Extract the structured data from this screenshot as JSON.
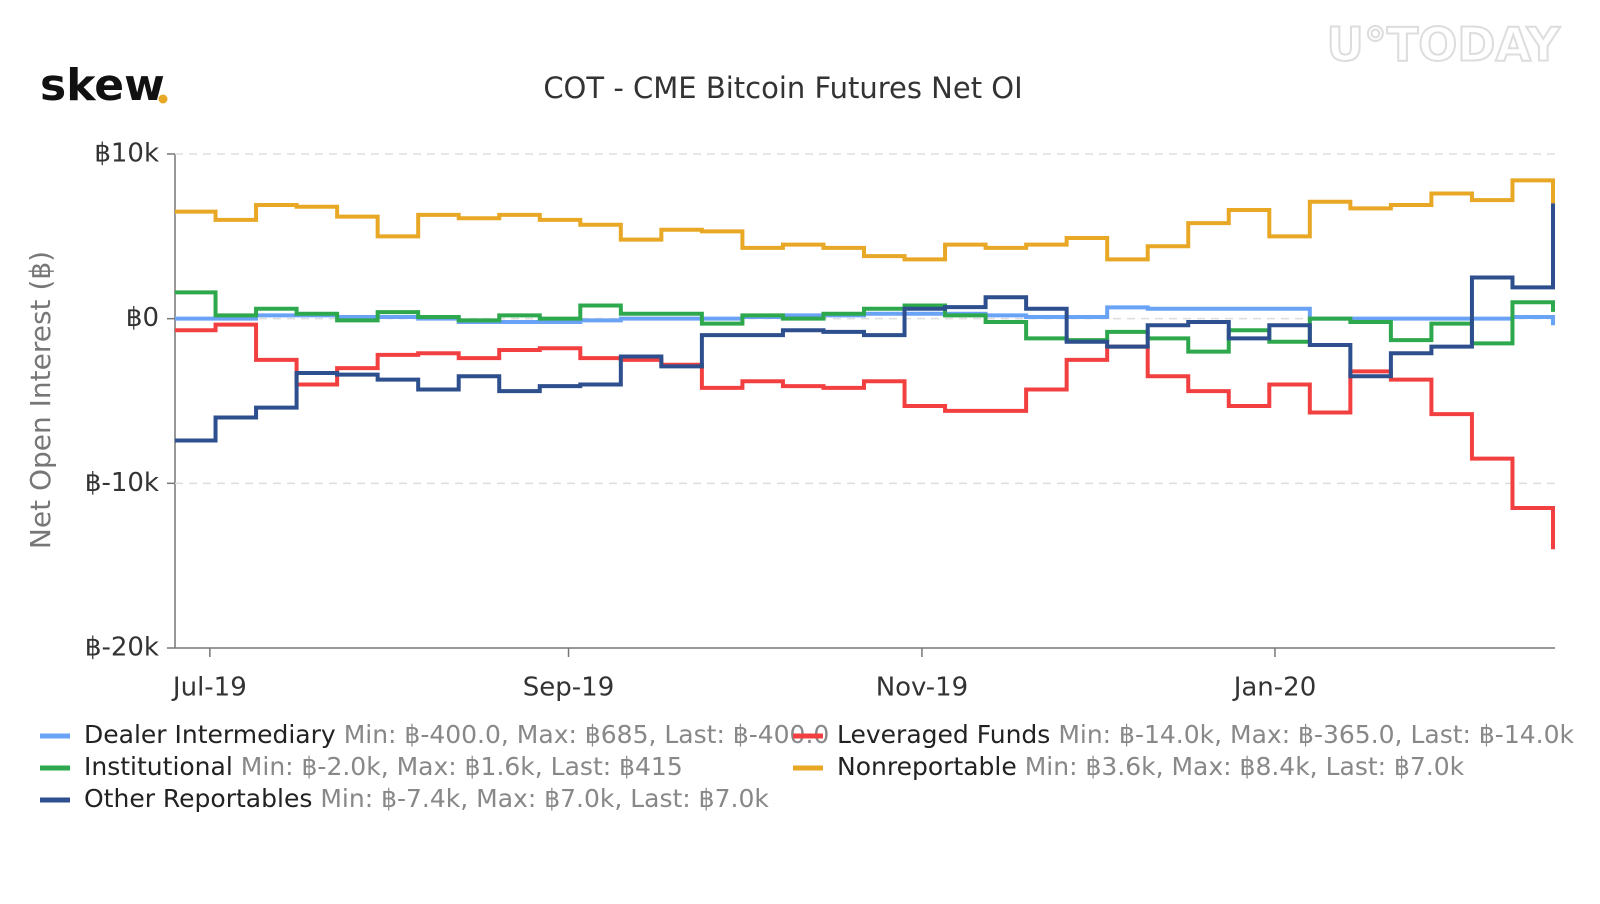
{
  "logo": "skew",
  "watermark": "U°TODAY",
  "chart_data": {
    "type": "step",
    "title": "COT - CME Bitcoin Futures Net OI",
    "y_label": "Net Open Interest (฿)",
    "x": [
      0,
      1,
      2,
      3,
      4,
      5,
      6,
      7,
      8,
      9,
      10,
      11,
      12,
      13,
      14,
      15,
      16,
      17,
      18,
      19,
      20,
      21,
      22,
      23,
      24,
      25,
      26,
      27,
      28,
      29,
      30,
      31,
      32,
      33,
      34
    ],
    "xlim": [
      0,
      34
    ],
    "xticks": [
      {
        "value": 0.86,
        "label": "Jul-19"
      },
      {
        "value": 9.71,
        "label": "Sep-19"
      },
      {
        "value": 18.43,
        "label": "Nov-19"
      },
      {
        "value": 27.14,
        "label": "Jan-20"
      }
    ],
    "ylim": [
      -20000,
      10000
    ],
    "yticks": [
      {
        "value": -20000,
        "label": "฿-20k"
      },
      {
        "value": -10000,
        "label": "฿-10k"
      },
      {
        "value": 0,
        "label": "฿0"
      },
      {
        "value": 10000,
        "label": "฿10k"
      }
    ],
    "grid": true,
    "series": [
      {
        "name": "Dealer Intermediary",
        "stats": "Min: ฿-400.0, Max: ฿685, Last: ฿-400.0",
        "color": "#6aa3f5",
        "values": [
          0,
          0,
          200,
          200,
          100,
          100,
          0,
          -200,
          -200,
          -200,
          -100,
          0,
          0,
          0,
          100,
          200,
          200,
          300,
          300,
          300,
          200,
          100,
          100,
          685,
          600,
          600,
          600,
          600,
          0,
          0,
          0,
          0,
          0,
          100,
          -400
        ]
      },
      {
        "name": "Leveraged Funds",
        "stats": "Min: ฿-14.0k, Max: ฿-365.0, Last: ฿-14.0k",
        "color": "#f24040",
        "values": [
          -700,
          -365,
          -2500,
          -4000,
          -3000,
          -2200,
          -2100,
          -2400,
          -1900,
          -1800,
          -2400,
          -2500,
          -2800,
          -4200,
          -3800,
          -4100,
          -4200,
          -3800,
          -5300,
          -5600,
          -5600,
          -4300,
          -2500,
          -1700,
          -3500,
          -4400,
          -5300,
          -4000,
          -5700,
          -3200,
          -3700,
          -5800,
          -8500,
          -11500,
          -14000
        ]
      },
      {
        "name": "Institutional",
        "stats": "Min: ฿-2.0k, Max: ฿1.6k, Last: ฿415",
        "color": "#2ea84c",
        "values": [
          1600,
          200,
          600,
          300,
          -100,
          400,
          100,
          -100,
          200,
          0,
          800,
          300,
          300,
          -300,
          200,
          0,
          300,
          600,
          800,
          200,
          -200,
          -1200,
          -1300,
          -800,
          -1200,
          -2000,
          -700,
          -1400,
          0,
          -200,
          -1300,
          -300,
          -1500,
          1000,
          415
        ]
      },
      {
        "name": "Nonreportable",
        "stats": "Min: ฿3.6k, Max: ฿8.4k, Last: ฿7.0k",
        "color": "#e8a825",
        "values": [
          6500,
          6000,
          6900,
          6800,
          6200,
          5000,
          6300,
          6100,
          6300,
          6000,
          5700,
          4800,
          5400,
          5300,
          4300,
          4500,
          4300,
          3800,
          3600,
          4500,
          4300,
          4500,
          4900,
          3600,
          4400,
          5800,
          6600,
          5000,
          7100,
          6700,
          6900,
          7600,
          7200,
          8400,
          7000
        ]
      },
      {
        "name": "Other Reportables",
        "stats": "Min: ฿-7.4k, Max: ฿7.0k, Last: ฿7.0k",
        "color": "#2d4f8e",
        "values": [
          -7400,
          -6000,
          -5400,
          -3300,
          -3400,
          -3700,
          -4300,
          -3500,
          -4400,
          -4100,
          -4000,
          -2300,
          -2900,
          -1000,
          -1000,
          -700,
          -800,
          -1000,
          600,
          700,
          1300,
          600,
          -1400,
          -1700,
          -400,
          -200,
          -1200,
          -400,
          -1600,
          -3500,
          -2100,
          -1700,
          2500,
          1900,
          7000
        ]
      }
    ]
  }
}
